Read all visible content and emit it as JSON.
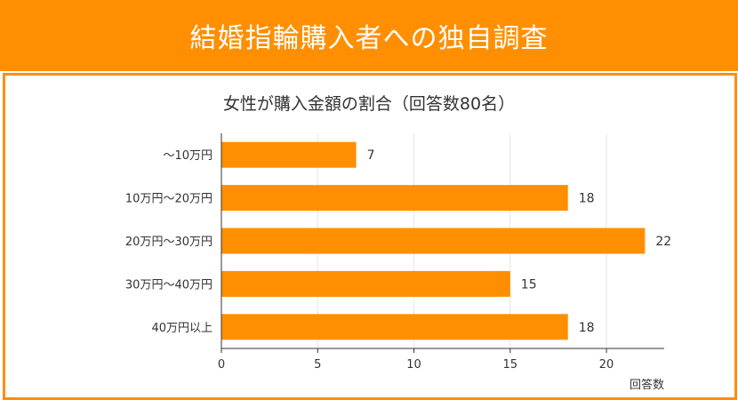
{
  "header": {
    "title": "結婚指輪購入者への独自調査"
  },
  "colors": {
    "accent": "#ff8f00",
    "bar": "#ff8f00",
    "text": "#333333",
    "grid": "#e5e5e5"
  },
  "chart_data": {
    "type": "bar",
    "orientation": "horizontal",
    "title": "女性が購入金額の割合（回答数80名）",
    "xlabel": "回答数",
    "ylabel": "",
    "categories": [
      "〜10万円",
      "10万円〜20万円",
      "20万円〜30万円",
      "30万円〜40万円",
      "40万円以上"
    ],
    "values": [
      7,
      18,
      22,
      15,
      18
    ],
    "xlim": [
      0,
      23
    ],
    "xticks": [
      0,
      5,
      10,
      15,
      20
    ],
    "grid": true,
    "legend": "none",
    "data_labels": true
  }
}
